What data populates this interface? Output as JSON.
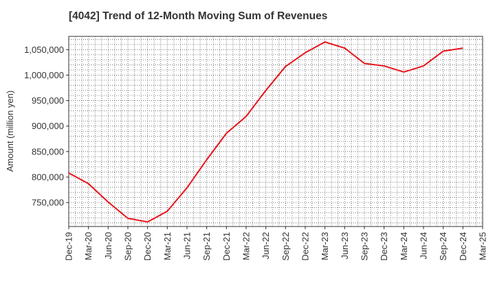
{
  "chart_data": {
    "type": "line",
    "title": "[4042]  Trend of 12-Month Moving Sum of Revenues",
    "xlabel": "",
    "ylabel": "Amount (million yen)",
    "ylim": [
      703000,
      1076000
    ],
    "grid": true,
    "y_ticks": [
      {
        "value": 750000,
        "label": "750,000"
      },
      {
        "value": 800000,
        "label": "800,000"
      },
      {
        "value": 850000,
        "label": "850,000"
      },
      {
        "value": 900000,
        "label": "900,000"
      },
      {
        "value": 950000,
        "label": "950,000"
      },
      {
        "value": 1000000,
        "label": "1,000,000"
      },
      {
        "value": 1050000,
        "label": "1,050,000"
      }
    ],
    "x_tick_labels": [
      "Dec-19",
      "Mar-20",
      "Jun-20",
      "Sep-20",
      "Dec-20",
      "Mar-21",
      "Jun-21",
      "Sep-21",
      "Dec-21",
      "Mar-22",
      "Jun-22",
      "Sep-22",
      "Dec-22",
      "Mar-23",
      "Jun-23",
      "Sep-23",
      "Dec-23",
      "Mar-24",
      "Jun-24",
      "Sep-24",
      "Dec-24",
      "Mar-25"
    ],
    "line_color": "#e8141c",
    "series": [
      {
        "x": [
          "Dec-19",
          "Mar-20",
          "Jun-20",
          "Sep-20",
          "Dec-20",
          "Mar-21",
          "Jun-21",
          "Sep-21",
          "Dec-21",
          "Mar-22",
          "Jun-22",
          "Sep-22",
          "Dec-22",
          "Mar-23",
          "Jun-23",
          "Sep-23",
          "Dec-23",
          "Mar-24",
          "Jun-24",
          "Sep-24",
          "Dec-24"
        ],
        "values": [
          808000,
          787000,
          751000,
          719000,
          712000,
          733000,
          779000,
          834000,
          886000,
          919000,
          970000,
          1017000,
          1044000,
          1065000,
          1053000,
          1023000,
          1018000,
          1006000,
          1018000,
          1047000,
          1053000
        ]
      }
    ]
  }
}
